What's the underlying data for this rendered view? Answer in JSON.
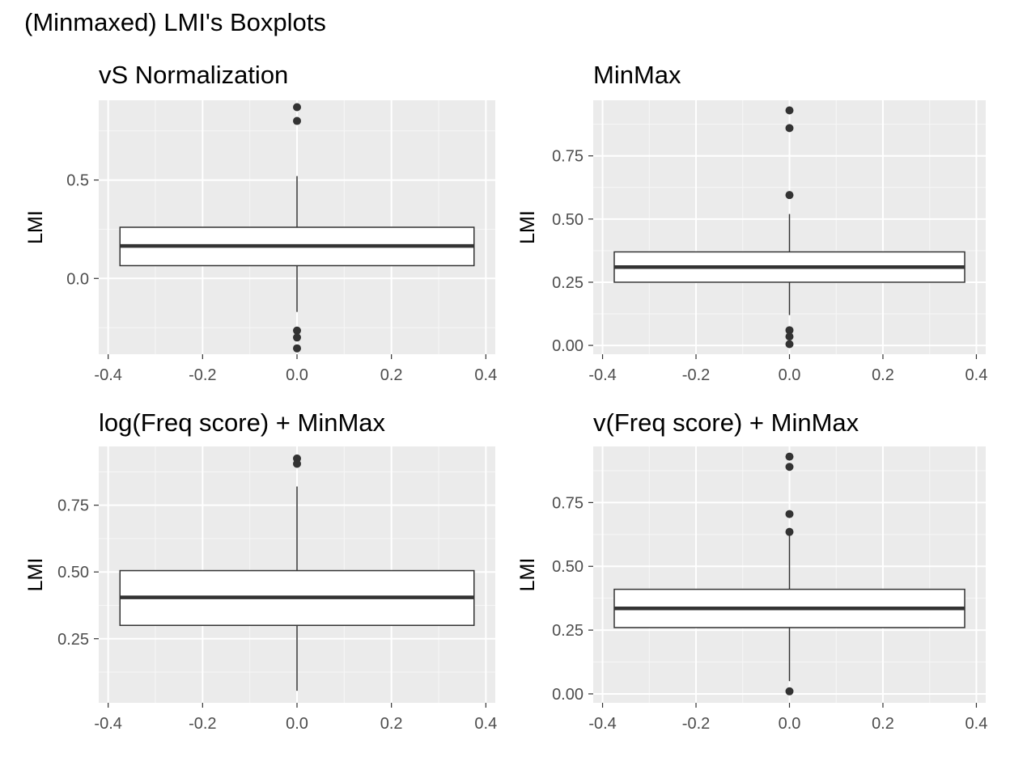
{
  "figure": {
    "title": "(Minmaxed) LMI's Boxplots"
  },
  "chart_data": [
    {
      "type": "boxplot",
      "title": "vS Normalization",
      "xlabel": "",
      "ylabel": "LMI",
      "xlim": [
        -0.42,
        0.42
      ],
      "ylim": [
        -0.385,
        0.905
      ],
      "x_ticks": [
        -0.4,
        -0.2,
        0.0,
        0.2,
        0.4
      ],
      "x_tick_labels": [
        "-0.4",
        "-0.2",
        "0.0",
        "0.2",
        "0.4"
      ],
      "y_ticks": [
        0.0,
        0.5
      ],
      "y_tick_labels": [
        "0.0",
        "0.5"
      ],
      "grid": true,
      "box": {
        "x": 0.0,
        "width": 0.75,
        "q1": 0.065,
        "median": 0.165,
        "q3": 0.26,
        "whisker_low": -0.17,
        "whisker_high": 0.52
      },
      "outliers": [
        0.87,
        0.8,
        -0.265,
        -0.3,
        -0.355
      ]
    },
    {
      "type": "boxplot",
      "title": "MinMax",
      "xlabel": "",
      "ylabel": "LMI",
      "xlim": [
        -0.42,
        0.42
      ],
      "ylim": [
        -0.035,
        0.97
      ],
      "x_ticks": [
        -0.4,
        -0.2,
        0.0,
        0.2,
        0.4
      ],
      "x_tick_labels": [
        "-0.4",
        "-0.2",
        "0.0",
        "0.2",
        "0.4"
      ],
      "y_ticks": [
        0.0,
        0.25,
        0.5,
        0.75
      ],
      "y_tick_labels": [
        "0.00",
        "0.25",
        "0.50",
        "0.75"
      ],
      "grid": true,
      "box": {
        "x": 0.0,
        "width": 0.75,
        "q1": 0.25,
        "median": 0.31,
        "q3": 0.37,
        "whisker_low": 0.12,
        "whisker_high": 0.52
      },
      "outliers": [
        0.93,
        0.86,
        0.595,
        0.06,
        0.035,
        0.005
      ]
    },
    {
      "type": "boxplot",
      "title": "log(Freq score) + MinMax",
      "xlabel": "",
      "ylabel": "LMI",
      "xlim": [
        -0.42,
        0.42
      ],
      "ylim": [
        0.01,
        0.97
      ],
      "x_ticks": [
        -0.4,
        -0.2,
        0.0,
        0.2,
        0.4
      ],
      "x_tick_labels": [
        "-0.4",
        "-0.2",
        "0.0",
        "0.2",
        "0.4"
      ],
      "y_ticks": [
        0.25,
        0.5,
        0.75
      ],
      "y_tick_labels": [
        "0.25",
        "0.50",
        "0.75"
      ],
      "grid": true,
      "box": {
        "x": 0.0,
        "width": 0.75,
        "q1": 0.3,
        "median": 0.405,
        "q3": 0.505,
        "whisker_low": 0.055,
        "whisker_high": 0.82
      },
      "outliers": [
        0.925,
        0.905
      ]
    },
    {
      "type": "boxplot",
      "title": "v(Freq score)   + MinMax",
      "xlabel": "",
      "ylabel": "LMI",
      "xlim": [
        -0.42,
        0.42
      ],
      "ylim": [
        -0.035,
        0.97
      ],
      "x_ticks": [
        -0.4,
        -0.2,
        0.0,
        0.2,
        0.4
      ],
      "x_tick_labels": [
        "-0.4",
        "-0.2",
        "0.0",
        "0.2",
        "0.4"
      ],
      "y_ticks": [
        0.0,
        0.25,
        0.5,
        0.75
      ],
      "y_tick_labels": [
        "0.00",
        "0.25",
        "0.50",
        "0.75"
      ],
      "grid": true,
      "box": {
        "x": 0.0,
        "width": 0.75,
        "q1": 0.26,
        "median": 0.335,
        "q3": 0.41,
        "whisker_low": 0.05,
        "whisker_high": 0.635
      },
      "outliers": [
        0.93,
        0.89,
        0.705,
        0.635,
        0.01
      ]
    }
  ]
}
